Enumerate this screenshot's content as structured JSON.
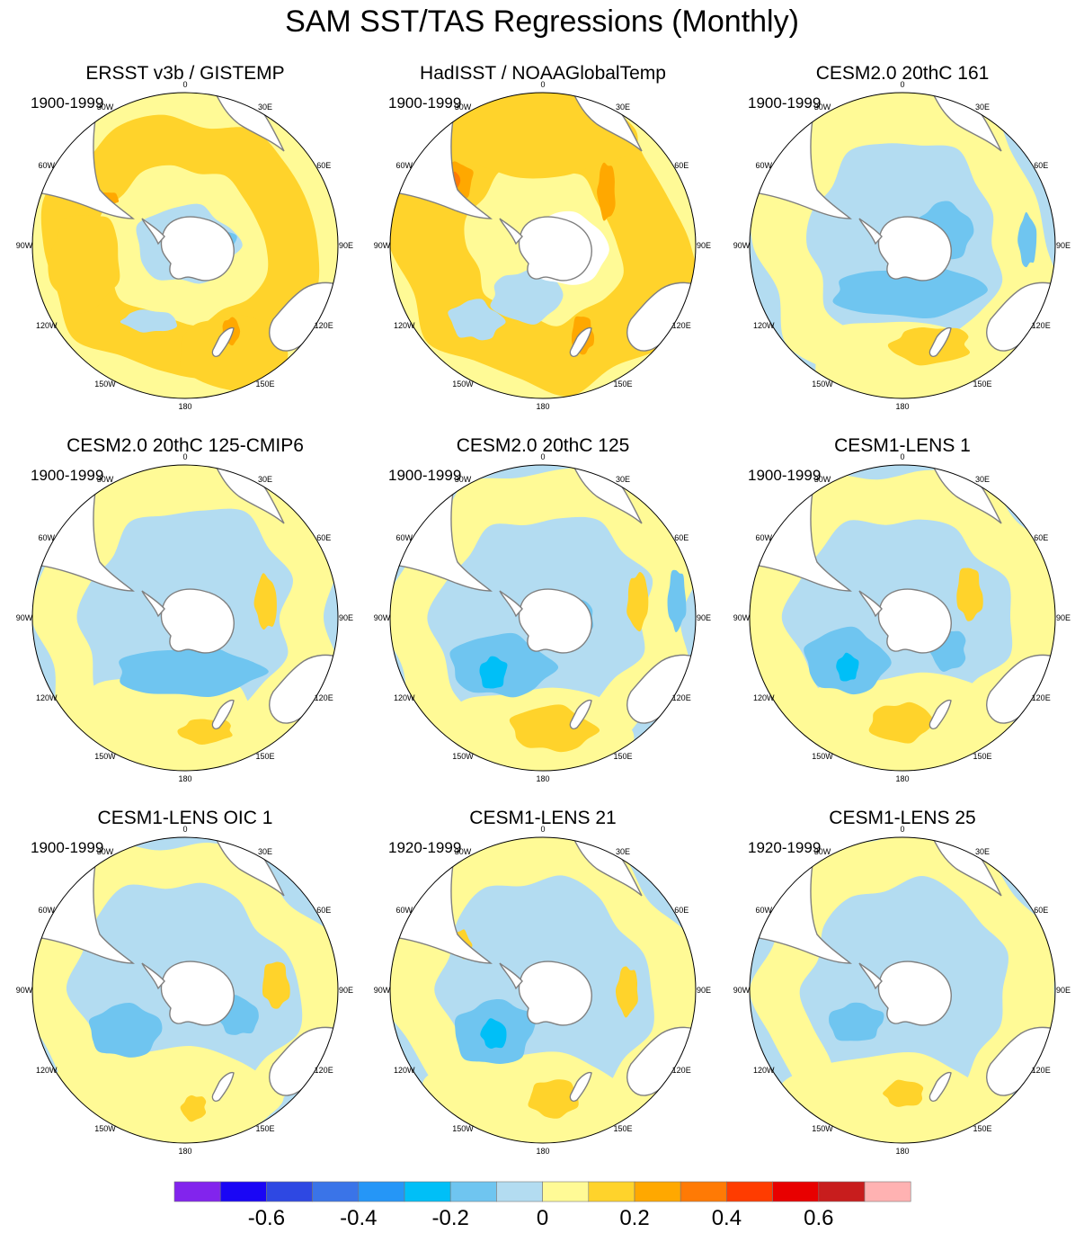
{
  "title": "SAM SST/TAS Regressions (Monthly)",
  "panels": [
    {
      "title": "ERSST v3b / GISTEMP",
      "period": "1900-1999"
    },
    {
      "title": "HadISST / NOAAGlobalTemp",
      "period": "1900-1999"
    },
    {
      "title": "CESM2.0 20thC 161",
      "period": "1900-1999"
    },
    {
      "title": "CESM2.0 20thC 125-CMIP6",
      "period": "1900-1999"
    },
    {
      "title": "CESM2.0 20thC 125",
      "period": "1900-1999"
    },
    {
      "title": "CESM1-LENS 1",
      "period": "1900-1999"
    },
    {
      "title": "CESM1-LENS OIC 1",
      "period": "1900-1999"
    },
    {
      "title": "CESM1-LENS 21",
      "period": "1920-1999"
    },
    {
      "title": "CESM1-LENS 25",
      "period": "1920-1999"
    }
  ],
  "longitude_labels": [
    "0",
    "30E",
    "60E",
    "90E",
    "120E",
    "150E",
    "180",
    "150W",
    "120W",
    "90W",
    "60W",
    "30W"
  ],
  "colorbar": {
    "colors": [
      "#8224ed",
      "#1a06f5",
      "#2e48e3",
      "#3a74e8",
      "#2596f7",
      "#00bff7",
      "#6fc5f0",
      "#b3dcf1",
      "#fffa96",
      "#ffd32b",
      "#ffa800",
      "#ff7a05",
      "#ff3c00",
      "#e80000",
      "#c81d1d",
      "#ffb2b2"
    ],
    "tick_labels": [
      "-0.6",
      "-0.4",
      "-0.2",
      "0",
      "0.2",
      "0.4",
      "0.6"
    ]
  },
  "colors": {
    "land": "#ffffff",
    "coastline": "#7f7f7f",
    "missing": "#ffffff"
  }
}
